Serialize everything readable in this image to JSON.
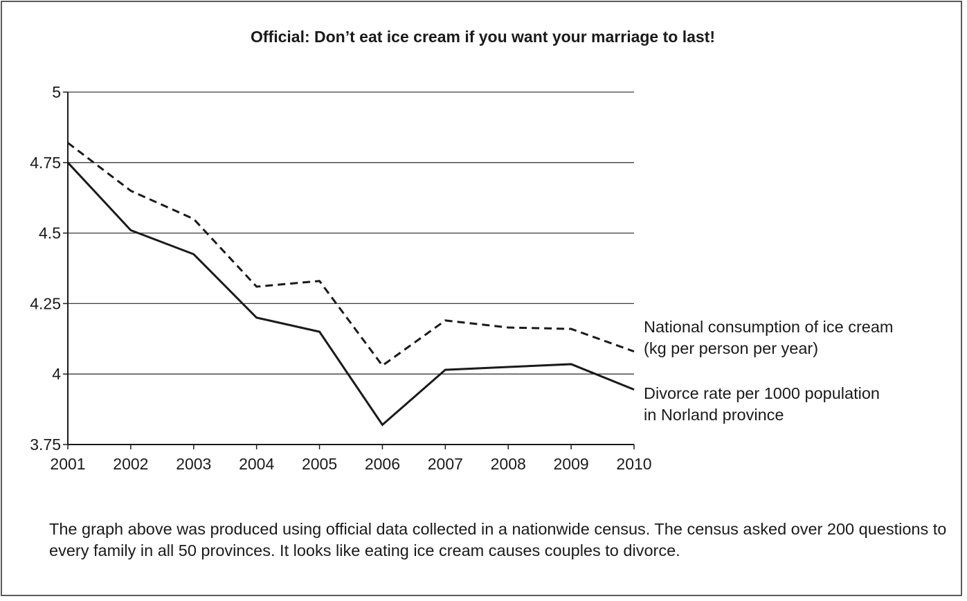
{
  "chart_data": {
    "type": "line",
    "title": "Official: Don’t eat ice cream if you want your marriage to last!",
    "xlabel": "",
    "ylabel": "",
    "categories": [
      "2001",
      "2002",
      "2003",
      "2004",
      "2005",
      "2006",
      "2007",
      "2008",
      "2009",
      "2010"
    ],
    "y_ticks": [
      "5",
      "4.75",
      "4.5",
      "4.25",
      "4",
      "3.75"
    ],
    "y_tick_values": [
      5,
      4.75,
      4.5,
      4.25,
      4,
      3.75
    ],
    "ylim": [
      3.75,
      5
    ],
    "grid": "horizontal",
    "series": [
      {
        "name": "National consumption of ice cream (kg per person per year)",
        "label_lines": [
          "National consumption of ice cream",
          "(kg per person per year)"
        ],
        "style": "dashed",
        "color": "#1a1a1a",
        "values": [
          4.82,
          4.65,
          4.55,
          4.31,
          4.33,
          4.03,
          4.19,
          4.165,
          4.16,
          4.08
        ]
      },
      {
        "name": "Divorce rate per 1000 population in Norland province",
        "label_lines": [
          "Divorce rate per 1000 population",
          "in Norland province"
        ],
        "style": "solid",
        "color": "#1a1a1a",
        "values": [
          4.75,
          4.51,
          4.425,
          4.2,
          4.15,
          3.82,
          4.015,
          4.025,
          4.035,
          3.945
        ]
      }
    ]
  },
  "caption": "The graph above was produced using official data collected in a nationwide census. The census asked over 200 questions to every family in all 50 provinces. It looks like eating ice cream causes couples to divorce."
}
